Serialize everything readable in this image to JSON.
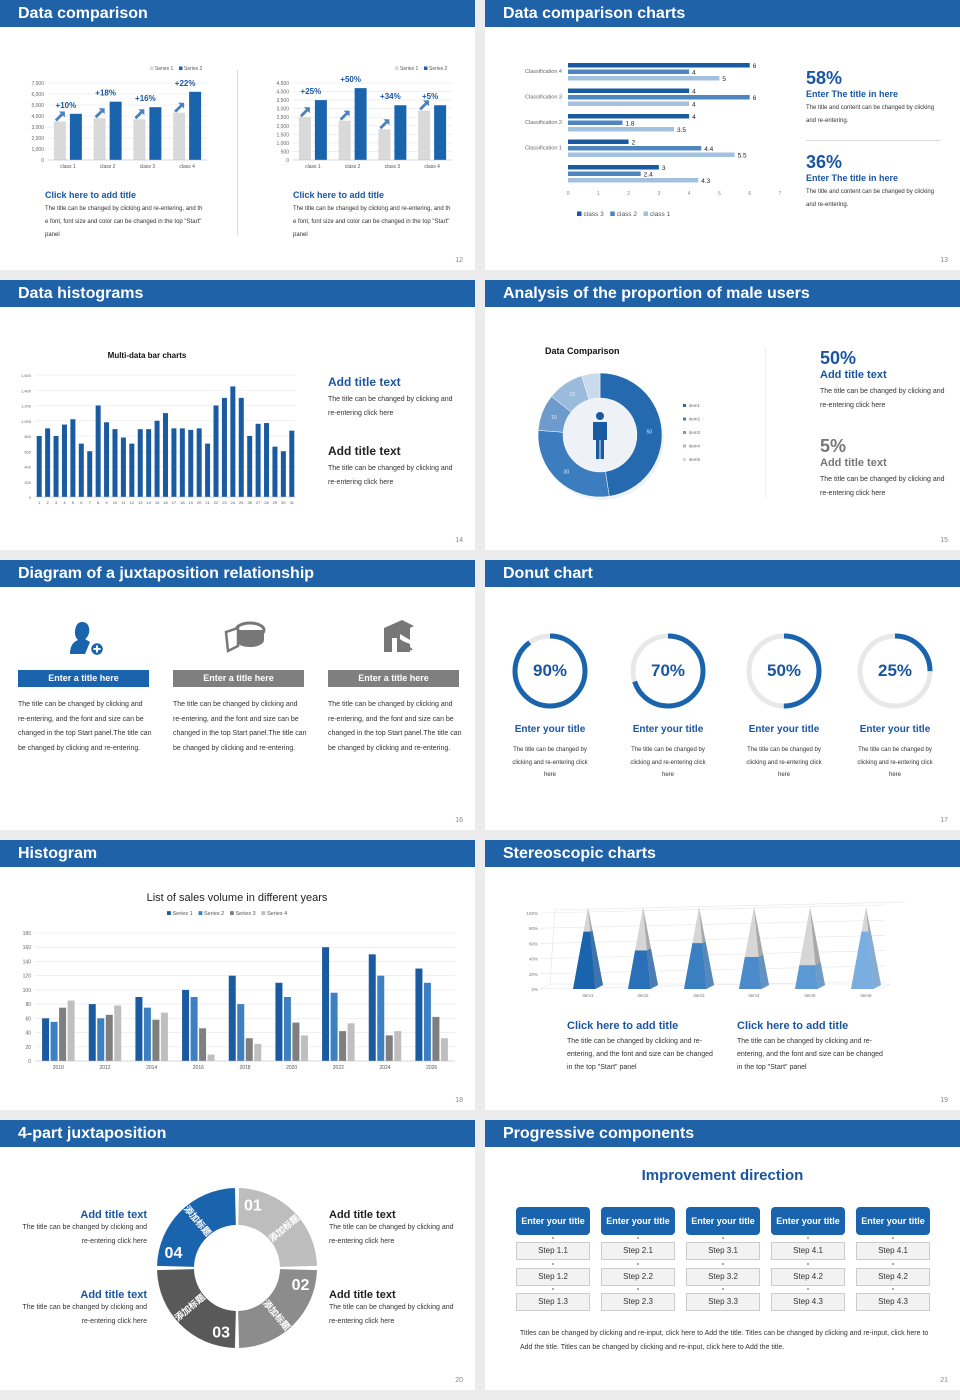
{
  "colors": {
    "header": "#1f62a8",
    "accent": "#1a56a0",
    "bar_dark": "#1a63ad",
    "bar_light": "#d9d9d9"
  },
  "slides": {
    "s12": {
      "title": "Data comparison",
      "page": "12",
      "texts": [
        {
          "title": "Click here to add title",
          "body": "The title can be changed by clicking and re-entering, and the font, font size and color can be changed in the top \"Start\" panel"
        },
        {
          "title": "Click here to add title",
          "body": "The title can be changed by clicking and re-entering, and the font, font size and color can be changed in the top \"Start\" panel"
        }
      ]
    },
    "s13": {
      "title": "Data comparison charts",
      "page": "13",
      "stats": [
        {
          "value": "58%",
          "title": "Enter The title in here",
          "body": "The title and content can be changed by clicking and re-entering."
        },
        {
          "value": "36%",
          "title": "Enter The title in here",
          "body": "The title and content can be changed by clicking and re-entering."
        }
      ]
    },
    "s14": {
      "title": "Data histograms",
      "page": "14",
      "texts": [
        {
          "title": "Add title text",
          "body": "The title can be changed by clicking and re-entering click here"
        },
        {
          "title": "Add title text",
          "body": "The title can be changed by clicking and re-entering click here"
        }
      ]
    },
    "s15": {
      "title": "Analysis of the proportion of male users",
      "page": "15",
      "stats": [
        {
          "value": "50%",
          "title": "Add title text",
          "body": "The title can be changed by clicking and re-entering click here"
        },
        {
          "value": "5%",
          "title": "Add title text",
          "body": "The title can be changed by clicking and re-entering click here"
        }
      ]
    },
    "s16": {
      "title": "Diagram of a juxtaposition relationship",
      "page": "16",
      "items": [
        {
          "icon": "user-add-icon",
          "label": "Enter a title here",
          "color": "#1a63ad",
          "body": "The title can be changed by clicking and re-entering, and the font and size can be changed in the top Start panel.The title can be changed by clicking and re-entering."
        },
        {
          "icon": "pie-chart-icon",
          "label": "Enter a title here",
          "color": "#7f7f7f",
          "body": "The title can be changed by clicking and re-entering, and the font and size can be changed in the top Start panel.The title can be changed by clicking and re-entering."
        },
        {
          "icon": "building-icon",
          "label": "Enter a title here",
          "color": "#7f7f7f",
          "body": "The title can be changed by clicking and re-entering, and the font and size can be changed in the top Start panel.The title can be changed by clicking and re-entering."
        }
      ]
    },
    "s17": {
      "title": "Donut chart",
      "page": "17",
      "items": [
        {
          "percent": 90,
          "label": "90%",
          "title": "Enter your title",
          "body": "The title can be changed by clicking and re-entering click here"
        },
        {
          "percent": 70,
          "label": "70%",
          "title": "Enter your title",
          "body": "The title can be changed by clicking and re-entering click here"
        },
        {
          "percent": 50,
          "label": "50%",
          "title": "Enter your title",
          "body": "The title can be changed by clicking and re-entering click here"
        },
        {
          "percent": 25,
          "label": "25%",
          "title": "Enter your title",
          "body": "The title can be changed by clicking and re-entering click here"
        }
      ]
    },
    "s18": {
      "title": "Histogram",
      "page": "18"
    },
    "s19": {
      "title": "Stereoscopic charts",
      "page": "19",
      "texts": [
        {
          "title": "Click here to add title",
          "body": "The title can be changed by clicking and re-entering, and the font and size can be changed in the top \"Start\" panel"
        },
        {
          "title": "Click here to add title",
          "body": "The title can be changed by clicking and re-entering, and the font and size can be changed in the top \"Start\" panel"
        }
      ]
    },
    "s20": {
      "title": "4-part juxtaposition",
      "page": "20",
      "segments": [
        {
          "num": "01",
          "text": "添加标题",
          "color": "#bdbdbd"
        },
        {
          "num": "02",
          "text": "添加标题",
          "color": "#8c8c8c"
        },
        {
          "num": "03",
          "text": "添加标题",
          "color": "#595959"
        },
        {
          "num": "04",
          "text": "添加标题",
          "color": "#1a63ad"
        }
      ],
      "texts": [
        {
          "title": "Add title text",
          "body": "The title can be changed by clicking and re-entering click here"
        },
        {
          "title": "Add title text",
          "body": "The title can be changed by clicking and re-entering click here"
        },
        {
          "title": "Add title text",
          "body": "The title can be changed by clicking and re-entering click here"
        },
        {
          "title": "Add title text",
          "body": "The title can be changed by clicking and re-entering click here"
        }
      ]
    },
    "s21": {
      "title": "Progressive components",
      "page": "21",
      "heading": "Improvement direction",
      "columns": [
        {
          "title": "Enter your title",
          "steps": [
            "Step 1.1",
            "Step 1.2",
            "Step 1.3"
          ]
        },
        {
          "title": "Enter your title",
          "steps": [
            "Step 2.1",
            "Step 2.2",
            "Step 2.3"
          ]
        },
        {
          "title": "Enter your title",
          "steps": [
            "Step 3.1",
            "Step 3.2",
            "Step 3.3"
          ]
        },
        {
          "title": "Enter your title",
          "steps": [
            "Step 4.1",
            "Step 4.2",
            "Step 4.3"
          ]
        },
        {
          "title": "Enter your title",
          "steps": [
            "Step 4.1",
            "Step 4.2",
            "Step 4.3"
          ]
        }
      ],
      "footer": "Titles can be changed by clicking and re-input, click here to Add the title. Titles can be changed by clicking and re-input, click here to Add the title. Titles can be changed by clicking and re-input, click here to Add the title."
    }
  },
  "chart_data": [
    {
      "id": "s12a",
      "type": "bar",
      "categories": [
        "class 1",
        "class 2",
        "class 3",
        "class 4"
      ],
      "series": [
        {
          "name": "Series 1",
          "values": [
            3500,
            3800,
            3700,
            4300
          ],
          "color": "#d9d9d9"
        },
        {
          "name": "Series 2",
          "values": [
            4200,
            5300,
            4800,
            6200
          ],
          "color": "#1a63ad"
        }
      ],
      "annotations": [
        "+10%",
        "+18%",
        "+16%",
        "+22%"
      ],
      "ylim": [
        0,
        7000
      ],
      "ytick_step": 1000,
      "grid": true,
      "legend": "top-right"
    },
    {
      "id": "s12b",
      "type": "bar",
      "categories": [
        "class 1",
        "class 2",
        "class 3",
        "class 4"
      ],
      "series": [
        {
          "name": "Series 1",
          "values": [
            2500,
            2300,
            1800,
            2900
          ],
          "color": "#d9d9d9"
        },
        {
          "name": "Series 2",
          "values": [
            3500,
            4200,
            3200,
            3200
          ],
          "color": "#1a63ad"
        }
      ],
      "annotations": [
        "+25%",
        "+50%",
        "+34%",
        "+5%"
      ],
      "ylim": [
        0,
        4500
      ],
      "ytick_step": 500,
      "grid": true,
      "legend": "top-right"
    },
    {
      "id": "s13",
      "type": "bar",
      "orientation": "horizontal",
      "categories": [
        "Classification 4",
        "Classification 3",
        "Classification 2",
        "Classification 1",
        ""
      ],
      "series": [
        {
          "name": "class 3",
          "values": [
            6,
            4,
            4,
            2,
            3
          ],
          "color": "#1a5aa0"
        },
        {
          "name": "class 2",
          "values": [
            4,
            6,
            1.8,
            4.4,
            2.4
          ],
          "color": "#4f86bf"
        },
        {
          "name": "class 1",
          "values": [
            5,
            4,
            3.5,
            5.5,
            4.3
          ],
          "color": "#a3c0de"
        }
      ],
      "xlim": [
        0,
        7
      ],
      "xtick_step": 1,
      "legend": "bottom",
      "data_labels": true
    },
    {
      "id": "s14",
      "type": "bar",
      "title": "Multi-data bar charts",
      "categories": [
        "1",
        "2",
        "3",
        "4",
        "5",
        "6",
        "7",
        "8",
        "9",
        "10",
        "11",
        "12",
        "13",
        "14",
        "15",
        "16",
        "17",
        "18",
        "19",
        "20",
        "21",
        "22",
        "23",
        "24",
        "25",
        "26",
        "27",
        "28",
        "29",
        "30",
        "31"
      ],
      "values": [
        800,
        900,
        800,
        950,
        1020,
        700,
        600,
        1200,
        980,
        890,
        780,
        700,
        890,
        890,
        1000,
        1100,
        900,
        900,
        880,
        900,
        700,
        1200,
        1300,
        1450,
        1300,
        800,
        960,
        970,
        660,
        600,
        870
      ],
      "color": "#1a5aa0",
      "ylim": [
        0,
        1600
      ],
      "ytick_step": 200,
      "grid": true
    },
    {
      "id": "s15",
      "type": "pie",
      "donut": true,
      "title": "Data Comparison",
      "categories": [
        "item1",
        "item2",
        "item3",
        "item4",
        "item5"
      ],
      "values": [
        50,
        30,
        10,
        10,
        5
      ],
      "data_labels": [
        "50",
        "30",
        "10",
        "10",
        ""
      ],
      "colors": [
        "#2569ae",
        "#3c7dc0",
        "#6d9bcc",
        "#9bbbdc",
        "#c9daec"
      ],
      "legend": "right"
    },
    {
      "id": "s18",
      "type": "bar",
      "title": "List of sales volume in different years",
      "categories": [
        "2010",
        "2012",
        "2014",
        "2016",
        "2018",
        "2020",
        "2022",
        "2024",
        "2026"
      ],
      "series": [
        {
          "name": "Series 1",
          "values": [
            60,
            80,
            90,
            100,
            120,
            110,
            160,
            150,
            130
          ],
          "color": "#1a5aa0"
        },
        {
          "name": "Series 2",
          "values": [
            55,
            60,
            75,
            90,
            80,
            90,
            96,
            120,
            110
          ],
          "color": "#3e7fc1"
        },
        {
          "name": "Series 3",
          "values": [
            75,
            65,
            58,
            46,
            32,
            54,
            42,
            36,
            62
          ],
          "color": "#7f7f7f"
        },
        {
          "name": "Series 4",
          "values": [
            85,
            78,
            68,
            9,
            24,
            36,
            53,
            42,
            32
          ],
          "color": "#bfbfbf"
        }
      ],
      "ylim": [
        0,
        180
      ],
      "ytick_step": 20,
      "grid": true,
      "legend": "top",
      "data_labels": true
    },
    {
      "id": "s19",
      "type": "bar",
      "style": "3d-pyramid",
      "categories": [
        "item1",
        "item2",
        "item3",
        "item4",
        "item5",
        "item6"
      ],
      "values": [
        70,
        47,
        56,
        39,
        29,
        70
      ],
      "colors": [
        "#1a63ad",
        "#2a70b8",
        "#3a7fc2",
        "#4b8acb",
        "#5b98d4",
        "#7aaee0"
      ],
      "ylim": [
        0,
        100
      ],
      "ytick_step": 20,
      "yunit": "%",
      "grid": true
    }
  ]
}
